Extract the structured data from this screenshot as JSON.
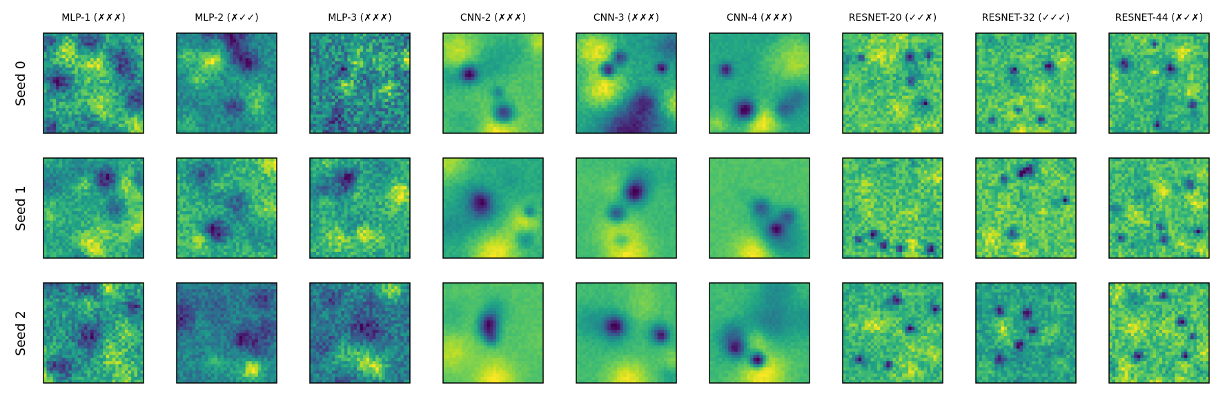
{
  "chart_data": {
    "type": "heatmap",
    "colormap": "viridis",
    "grid": false,
    "columns": [
      "MLP-1 (✗✗✗)",
      "MLP-2 (✗✓✓)",
      "MLP-3 (✗✗✗)",
      "CNN-2 (✗✗✗)",
      "CNN-3 (✗✗✗)",
      "CNN-4 (✗✗✗)",
      "RESNET-20 (✓✓✗)",
      "RESNET-32 (✓✓✓)",
      "RESNET-44 (✗✓✗)"
    ],
    "rows": [
      "Seed 0",
      "Seed 1",
      "Seed 2"
    ],
    "column_styles": [
      "mlp",
      "mlp",
      "mlp",
      "cnn",
      "cnn",
      "cnn",
      "resnet",
      "resnet",
      "resnet"
    ]
  }
}
